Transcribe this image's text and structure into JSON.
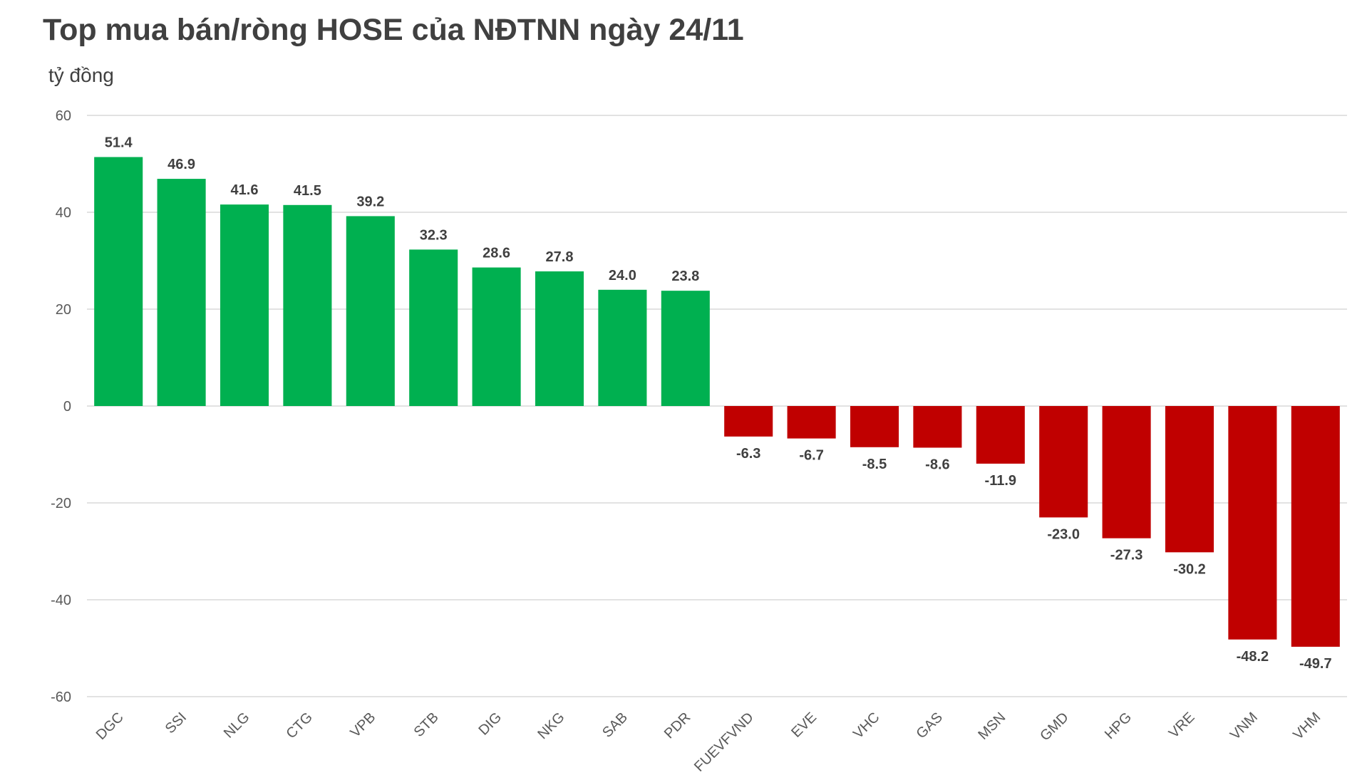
{
  "chart_data": {
    "type": "bar",
    "title": "Top mua bán/ròng HOSE của NĐTNN ngày 24/11",
    "ylabel": "tỷ đồng",
    "xlabel": "",
    "ylim": [
      -60,
      60
    ],
    "yticks": [
      "60",
      "40",
      "20",
      "0",
      "-20",
      "-40",
      "-60"
    ],
    "grid": true,
    "categories": [
      "DGC",
      "SSI",
      "NLG",
      "CTG",
      "VPB",
      "STB",
      "DIG",
      "NKG",
      "SAB",
      "PDR",
      "FUEVFVND",
      "EVE",
      "VHC",
      "GAS",
      "MSN",
      "GMD",
      "HPG",
      "VRE",
      "VNM",
      "VHM"
    ],
    "values": [
      51.4,
      46.9,
      41.6,
      41.5,
      39.2,
      32.3,
      28.6,
      27.8,
      24.0,
      23.8,
      -6.3,
      -6.7,
      -8.5,
      -8.6,
      -11.9,
      -23.0,
      -27.3,
      -30.2,
      -48.2,
      -49.7
    ],
    "value_labels": [
      "51.4",
      "46.9",
      "41.6",
      "41.5",
      "39.2",
      "32.3",
      "28.6",
      "27.8",
      "24.0",
      "23.8",
      "-6.3",
      "-6.7",
      "-8.5",
      "-8.6",
      "-11.9",
      "-23.0",
      "-27.3",
      "-30.2",
      "-48.2",
      "-49.7"
    ],
    "colors": {
      "positive": "#00b050",
      "negative": "#c00000"
    }
  }
}
